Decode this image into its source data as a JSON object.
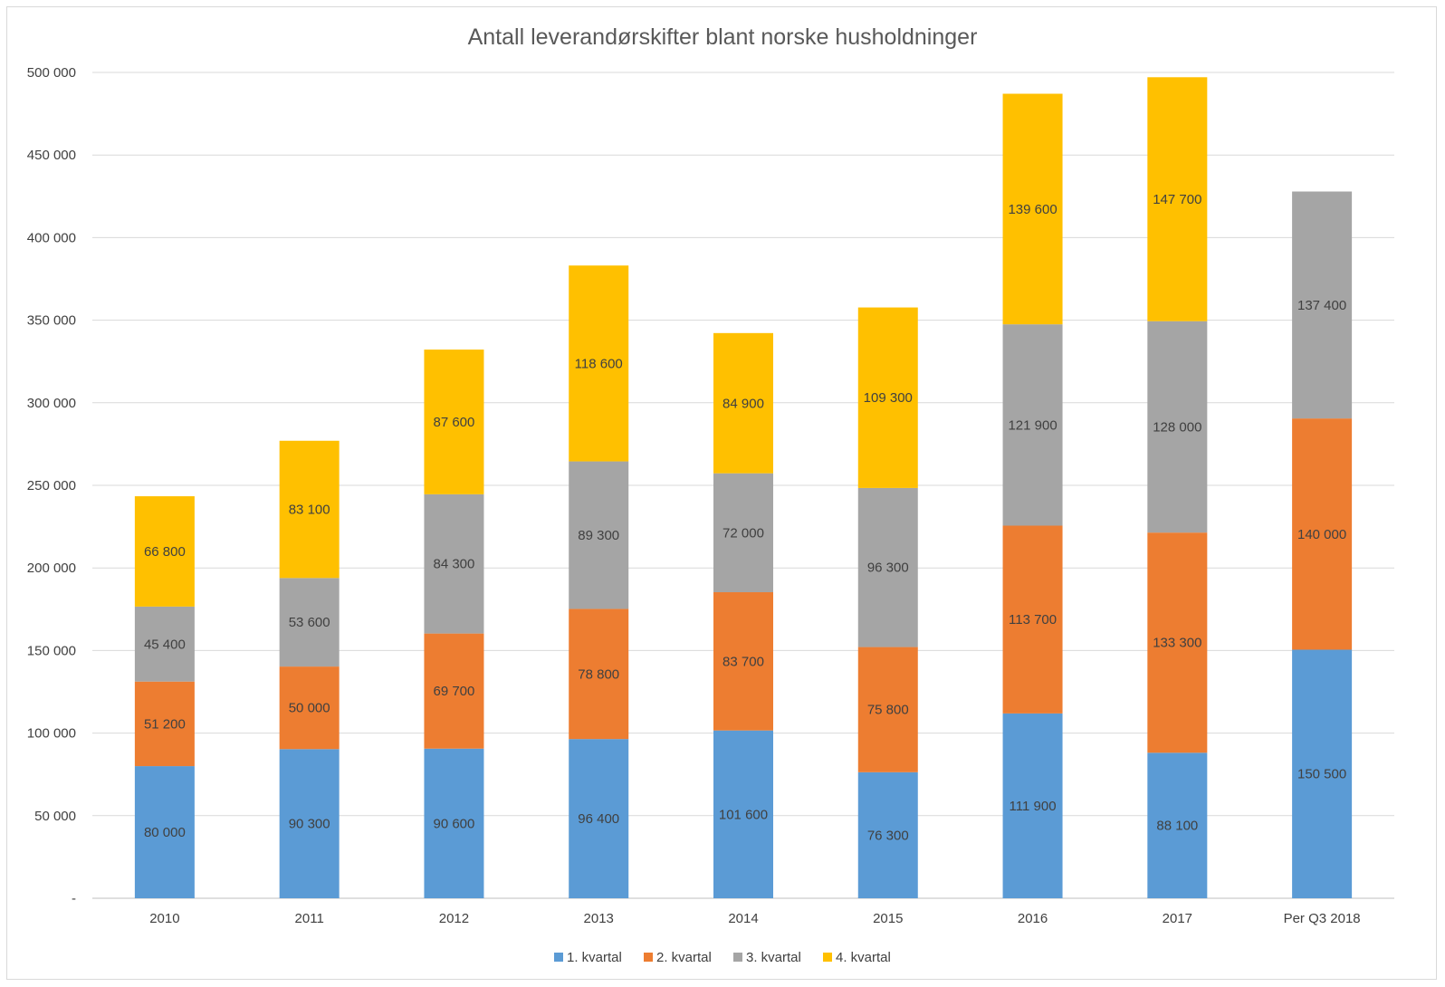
{
  "chart_data": {
    "type": "bar",
    "stacked": true,
    "title": "Antall leverandørskifter blant norske husholdninger",
    "categories": [
      "2010",
      "2011",
      "2012",
      "2013",
      "2014",
      "2015",
      "2016",
      "2017",
      "Per Q3 2018"
    ],
    "series": [
      {
        "name": "1. kvartal",
        "color": "#5B9BD5",
        "values": [
          80000,
          90300,
          90600,
          96400,
          101600,
          76300,
          111900,
          88100,
          150500
        ],
        "labels": [
          "80 000",
          "90 300",
          "90 600",
          "96 400",
          "101 600",
          "76 300",
          "111 900",
          "88 100",
          "150 500"
        ]
      },
      {
        "name": "2. kvartal",
        "color": "#ED7D31",
        "values": [
          51200,
          50000,
          69700,
          78800,
          83700,
          75800,
          113700,
          133300,
          140000
        ],
        "labels": [
          "51 200",
          "50 000",
          "69 700",
          "78 800",
          "83 700",
          "75 800",
          "113 700",
          "133 300",
          "140 000"
        ]
      },
      {
        "name": "3. kvartal",
        "color": "#A5A5A5",
        "values": [
          45400,
          53600,
          84300,
          89300,
          72000,
          96300,
          121900,
          128000,
          137400
        ],
        "labels": [
          "45 400",
          "53 600",
          "84 300",
          "89 300",
          "72 000",
          "96 300",
          "121 900",
          "128 000",
          "137 400"
        ]
      },
      {
        "name": "4. kvartal",
        "color": "#FFC000",
        "values": [
          66800,
          83100,
          87600,
          118600,
          84900,
          109300,
          139600,
          147700,
          null
        ],
        "labels": [
          "66 800",
          "83 100",
          "87 600",
          "118 600",
          "84 900",
          "109 300",
          "139 600",
          "147 700",
          null
        ]
      }
    ],
    "ylim": [
      0,
      500000
    ],
    "yticks": [
      0,
      50000,
      100000,
      150000,
      200000,
      250000,
      300000,
      350000,
      400000,
      450000,
      500000
    ],
    "ytick_labels": [
      "-",
      "50 000",
      "100 000",
      "150 000",
      "200 000",
      "250 000",
      "300 000",
      "350 000",
      "400 000",
      "450 000",
      "500 000"
    ],
    "grid": true,
    "legend_position": "bottom",
    "xlabel": "",
    "ylabel": ""
  }
}
